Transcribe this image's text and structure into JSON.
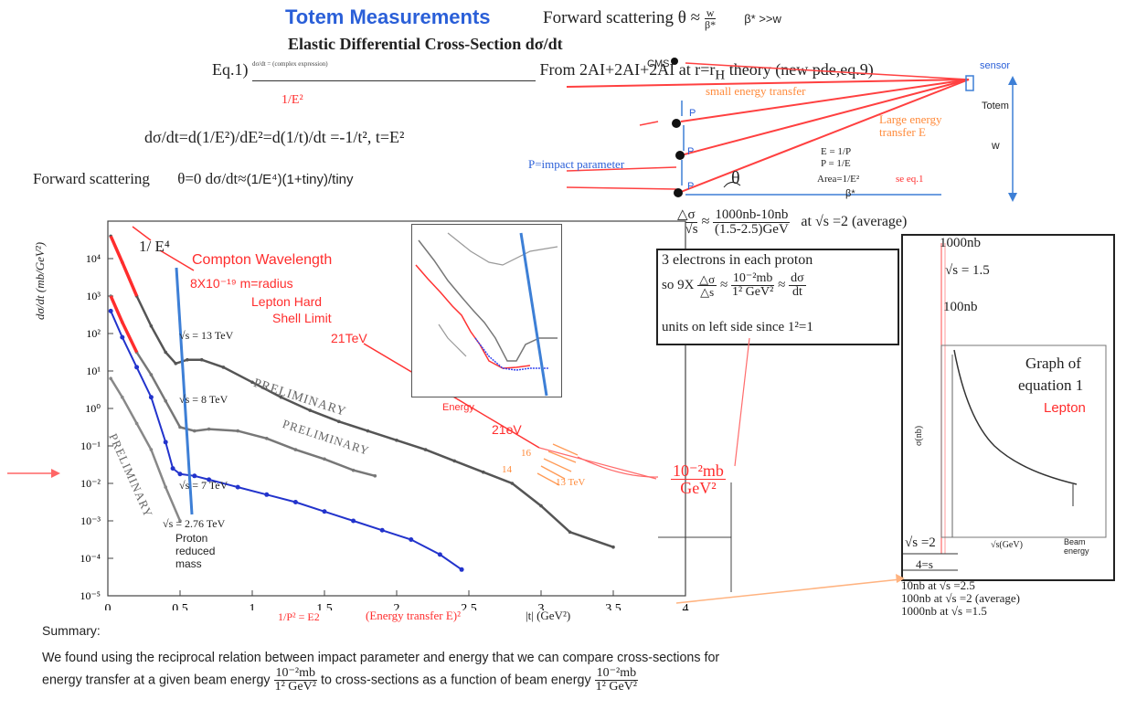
{
  "header": {
    "title": "Totem Measurements",
    "forward_label": "Forward scattering",
    "forward_theta": "θ ≈",
    "forward_frac_num": "w",
    "forward_frac_den": "β*",
    "forward_cond": "β* >>w",
    "subtitle": "Elastic Differential Cross-Section dσ/dt",
    "eq_label": "Eq.1)",
    "eq_formula": "dσ/dt = (complex expression)",
    "eq_from": "From 2AI+2AI+2AI at r=r",
    "eq_from_sub": "H",
    "eq_from_tail": " theory (new pde,eq.9)",
    "one_over_e2": "1/E²",
    "dsig_line": "dσ/dt=d(1/E²)/dE²=d(1/t)/dt =-1/t²,  t=E²",
    "fwd_line_a": "Forward scattering",
    "fwd_line_b": "θ=0  dσ/dt≈",
    "fwd_line_c": "(1/E⁴)(1+tiny)/tiny"
  },
  "diagram": {
    "cms": "CMS",
    "sensor": "sensor",
    "totem": "Totem",
    "small_energy": "small energy transfer",
    "large_energy": "Large energy transfer  E",
    "p_label": "P",
    "impact": "P=impact parameter",
    "e_eq": "E = 1/P",
    "p_eq": "P = 1/E",
    "area_eq": "Area=1/E²",
    "see_eq": "se eq.1",
    "theta": "θ",
    "w": "w",
    "beta": "β*"
  },
  "ratio": {
    "num": "△σ",
    "den": "△√s",
    "approx": "≈",
    "val_num": "1000nb-10nb",
    "val_den": "(1.5-2.5)GeV",
    "at": "at √s =2  (average)"
  },
  "electron_box": {
    "line1": "3 electrons in each proton",
    "line2_a": "so 9X",
    "frac1_num": "△σ",
    "frac1_den": "△s",
    "approx": "≈",
    "frac2_num": "10⁻²mb",
    "frac2_den": "1² GeV²",
    "approx2": "≈",
    "frac3_num": "dσ",
    "frac3_den": "dt",
    "line3": "units on left side since 1²=1"
  },
  "side_graph": {
    "top": "1000nb",
    "sqrt": "√s = 1.5",
    "mid": "100nb",
    "graph_of": "Graph of",
    "equation": "equation 1",
    "lepton": "Lepton",
    "ylabel": "σ(nb)",
    "xlabel": "√s(GeV)",
    "beam": "Beam energy",
    "sqrt2": "√s =2",
    "four": "4=s",
    "summary1": "10nb at √s =2.5",
    "summary2": "100nb at √s =2   (average)",
    "summary3": "1000nb at √s =1.5"
  },
  "annotations": {
    "inv_e4": "1/ E⁴",
    "compton": "Compton Wavelength",
    "radius": "8X10⁻¹⁹ m=radius",
    "lepton_hard": "Lepton Hard",
    "shell": "Shell Limit",
    "tev21a": "21TeV",
    "energy": "Energy",
    "tev21b": "21eV",
    "n16": "16",
    "n14": "14",
    "n13": "13 TeV",
    "result_num": "10⁻²mb",
    "result_den": "GeV²",
    "proton_reduced": "Proton reduced mass",
    "p2": "1/P² = E2",
    "energy_transfer": "(Energy transfer E)²",
    "t_axis": "|t|   (GeV²)"
  },
  "summary": {
    "heading": "Summary:",
    "line1": "We found using the reciprocal relation between impact parameter and energy that we can compare cross-sections for",
    "line2_a": "energy transfer at a given beam energy",
    "line2_b": "to  cross-sections as a function of beam energy",
    "frac_num": "10⁻²mb",
    "frac_den": "1² GeV²"
  },
  "chart_data": {
    "type": "line",
    "title": "",
    "xlabel": "|t|   (GeV²)",
    "ylabel": "dσ/dt   (mb/GeV²)",
    "xlim": [
      0,
      4
    ],
    "ylim_log10": [
      -5,
      5
    ],
    "x_ticks": [
      "0",
      "0.5",
      "1",
      "1.5",
      "2",
      "2.5",
      "3",
      "3.5",
      "4"
    ],
    "y_ticks": [
      "10⁻⁵",
      "10⁻⁴",
      "10⁻³",
      "10⁻²",
      "10⁻¹",
      "10⁰",
      "10¹",
      "10²",
      "10³",
      "10⁴"
    ],
    "colors": {
      "s13": "#555555",
      "s8": "#777777",
      "s7": "#2233cc",
      "s276": "#888888",
      "accent": "#ff2d2d",
      "vline": "#3d7fd6"
    },
    "series": [
      {
        "name": "√s = 13 TeV",
        "x": [
          0.02,
          0.1,
          0.2,
          0.3,
          0.4,
          0.47,
          0.55,
          0.65,
          0.8,
          1.0,
          1.2,
          1.4,
          1.6,
          1.8,
          2.0,
          2.2,
          2.4,
          2.6,
          2.8,
          3.0,
          3.2,
          3.5
        ],
        "log10y": [
          4.6,
          3.9,
          3.0,
          2.2,
          1.5,
          1.2,
          1.3,
          1.3,
          1.1,
          0.7,
          0.3,
          -0.05,
          -0.35,
          -0.6,
          -0.85,
          -1.1,
          -1.4,
          -1.7,
          -2.0,
          -2.6,
          -3.3,
          -3.7
        ]
      },
      {
        "name": "√s = 8 TeV",
        "x": [
          0.02,
          0.1,
          0.2,
          0.3,
          0.4,
          0.5,
          0.6,
          0.7,
          0.9,
          1.1,
          1.3,
          1.5,
          1.7,
          1.85
        ],
        "log10y": [
          3.0,
          2.3,
          1.5,
          0.9,
          0.2,
          -0.5,
          -0.6,
          -0.55,
          -0.6,
          -0.8,
          -1.1,
          -1.35,
          -1.65,
          -1.8
        ]
      },
      {
        "name": "√s = 7 TeV",
        "x": [
          0.02,
          0.1,
          0.2,
          0.3,
          0.4,
          0.45,
          0.5,
          0.6,
          0.7,
          0.9,
          1.1,
          1.3,
          1.5,
          1.7,
          1.9,
          2.1,
          2.3,
          2.45
        ],
        "log10y": [
          2.6,
          1.9,
          1.1,
          0.3,
          -0.9,
          -1.6,
          -1.75,
          -1.8,
          -1.9,
          -2.1,
          -2.3,
          -2.5,
          -2.75,
          -3.0,
          -3.25,
          -3.5,
          -3.9,
          -4.3
        ]
      },
      {
        "name": "√s = 2.76 TeV",
        "x": [
          0.02,
          0.1,
          0.2,
          0.3,
          0.4,
          0.5
        ],
        "log10y": [
          0.8,
          0.3,
          -0.4,
          -1.1,
          -2.1,
          -3.0
        ]
      }
    ],
    "curve_labels": [
      "√s = 13 TeV",
      "√s = 8 TeV",
      "√s = 7 TeV",
      "√s = 2.76 TeV"
    ],
    "preliminary": "PRELIMINARY",
    "grid": false
  }
}
